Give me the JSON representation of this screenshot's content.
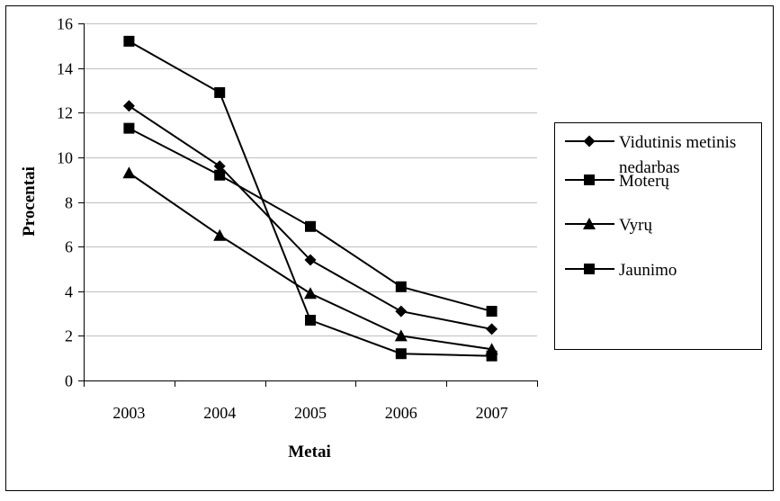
{
  "chart_data": {
    "type": "line",
    "title": "",
    "xlabel": "Metai",
    "ylabel": "Procentai",
    "categories": [
      "2003",
      "2004",
      "2005",
      "2006",
      "2007"
    ],
    "ylim": [
      0,
      16
    ],
    "yticks": [
      "0",
      "2",
      "4",
      "6",
      "8",
      "10",
      "12",
      "14",
      "16"
    ],
    "grid": "horizontal",
    "legend_position": "right",
    "series": [
      {
        "name": "Vidutinis metinis nedarbas",
        "legend_lines": [
          "Vidutinis metinis",
          "nedarbas"
        ],
        "marker": "diamond",
        "values": [
          12.3,
          9.6,
          5.4,
          3.1,
          2.3
        ]
      },
      {
        "name": "Moterų",
        "legend_lines": [
          "Moterų"
        ],
        "marker": "square",
        "values": [
          11.3,
          9.2,
          6.9,
          4.2,
          3.1
        ]
      },
      {
        "name": "Vyrų",
        "legend_lines": [
          "Vyrų"
        ],
        "marker": "triangle",
        "values": [
          9.3,
          6.5,
          3.9,
          2.0,
          1.4
        ]
      },
      {
        "name": "Jaunimo",
        "legend_lines": [
          "Jaunimo"
        ],
        "marker": "square",
        "values": [
          15.2,
          12.9,
          2.7,
          1.2,
          1.1
        ]
      }
    ],
    "colors": {
      "line": "#000000",
      "grid": "#bfbfbf",
      "background": "#ffffff",
      "frame": "#000000"
    }
  }
}
